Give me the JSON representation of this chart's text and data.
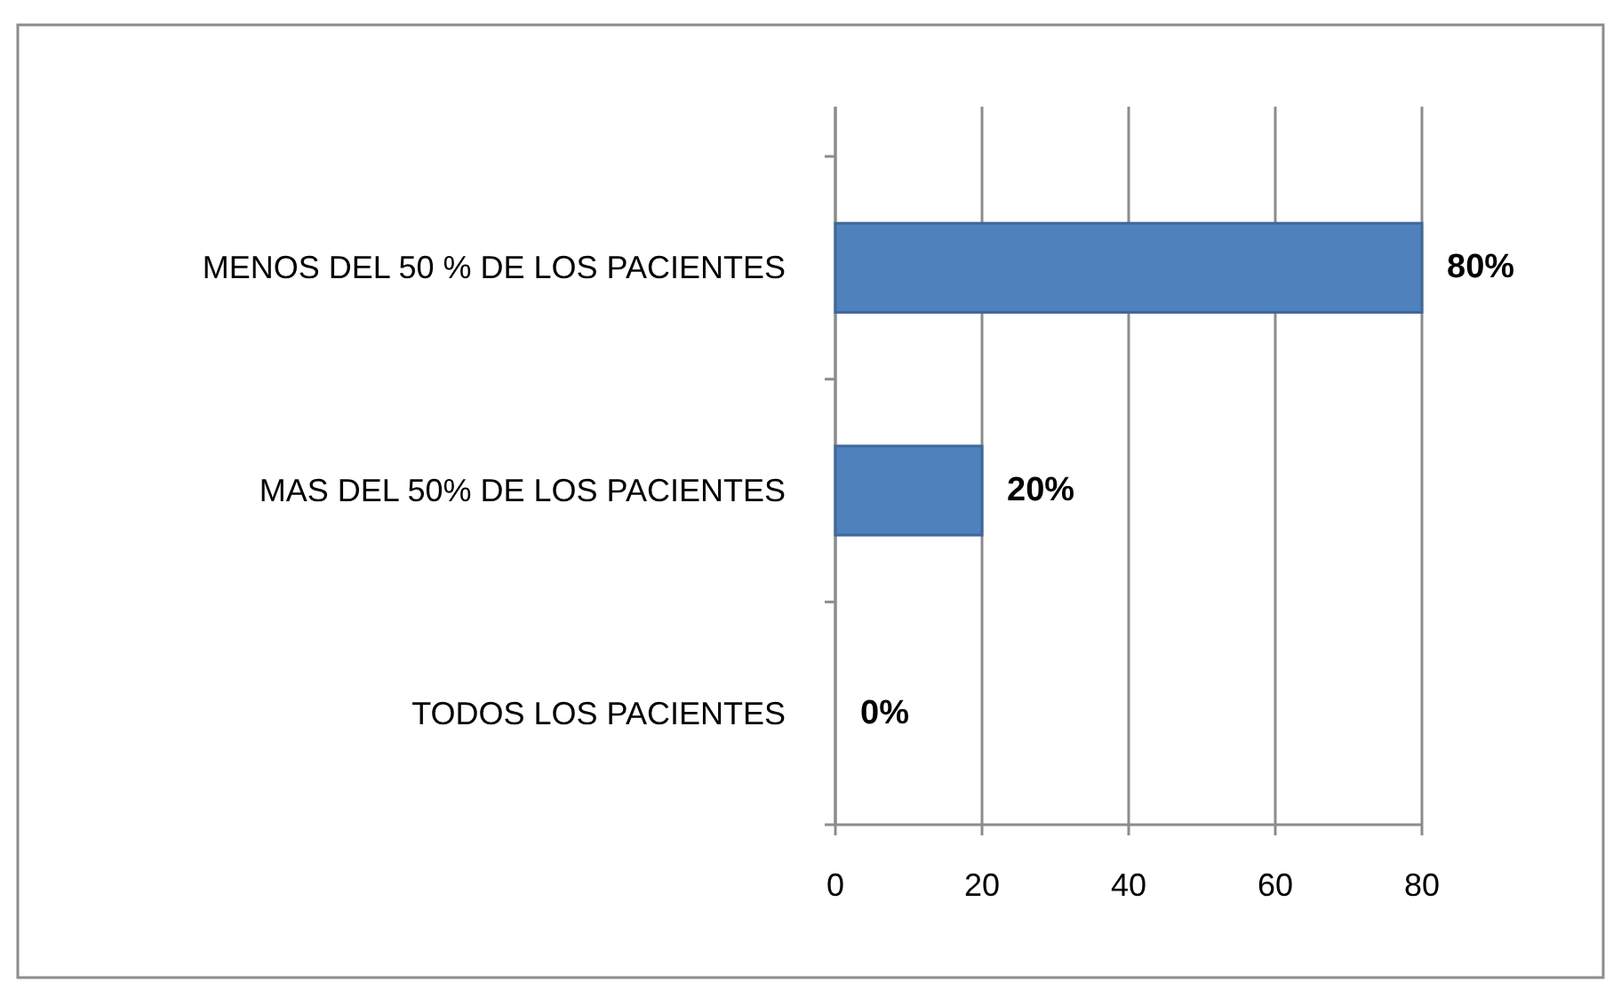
{
  "chart_data": {
    "type": "bar",
    "orientation": "horizontal",
    "categories": [
      "MENOS DEL 50 % DE LOS PACIENTES",
      "MAS DEL 50% DE LOS PACIENTES",
      "TODOS LOS PACIENTES"
    ],
    "values": [
      80,
      20,
      0
    ],
    "color": "#4f81bd",
    "value_labels": [
      "80%",
      "20%",
      "0%"
    ],
    "xlim": [
      0,
      80
    ],
    "xticks": [
      0,
      20,
      40,
      60,
      80
    ],
    "grid": "x"
  }
}
